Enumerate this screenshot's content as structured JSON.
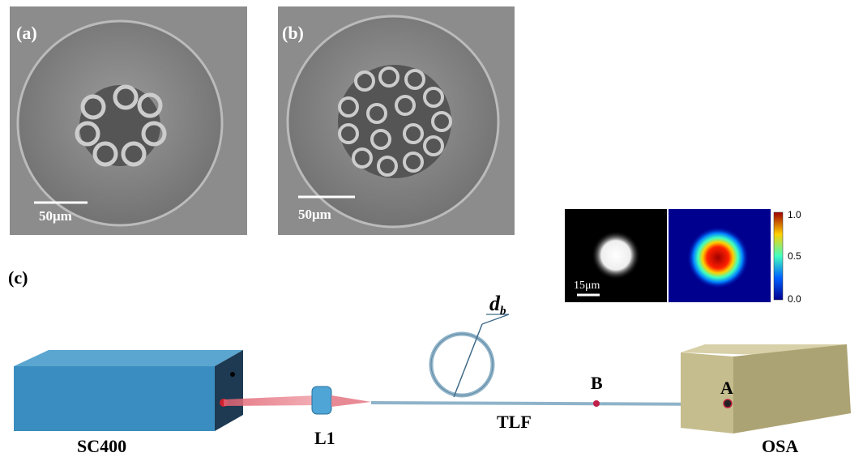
{
  "panels": [
    {
      "label": "(a)",
      "scale": "50μm"
    },
    {
      "label": "(b)",
      "scale": "50μm"
    },
    {
      "label": "(c)"
    }
  ],
  "inset": {
    "scale": "15μm",
    "colorbar_ticks": [
      "1.0",
      "0.5",
      "0.0"
    ]
  },
  "setup": {
    "source": "SC400",
    "lens": "L1",
    "fiber": "TLF",
    "point_b": "B",
    "point_a": "A",
    "analyzer": "OSA",
    "bend_symbol": "d",
    "bend_subscript": "b"
  }
}
